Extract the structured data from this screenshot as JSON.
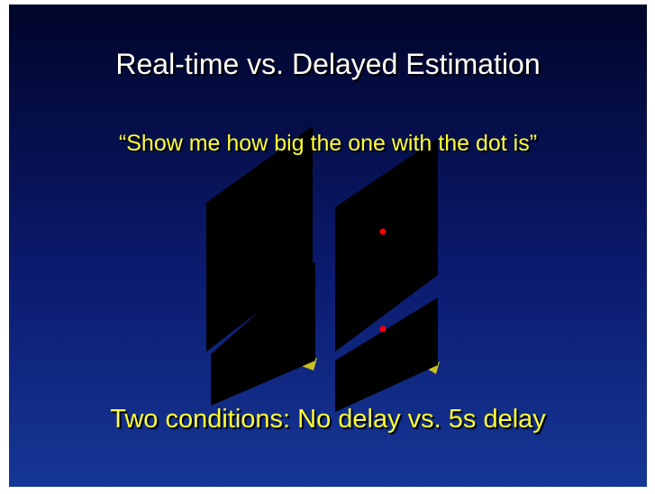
{
  "slide": {
    "title": "Real-time vs. Delayed Estimation",
    "quote": "“Show me how big the one with the dot is”",
    "conditions": "Two conditions:  No delay vs. 5s delay"
  }
}
